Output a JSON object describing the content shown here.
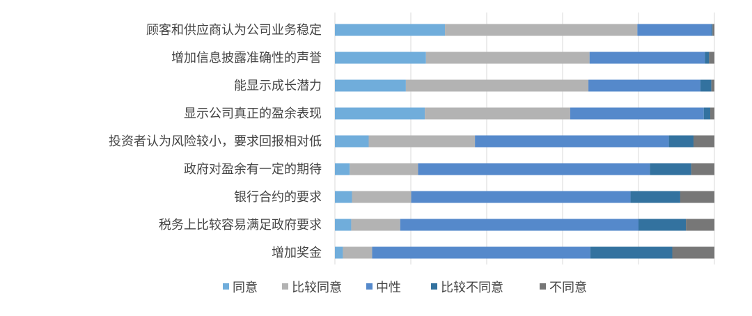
{
  "chart_data": {
    "type": "bar",
    "orientation": "horizontal",
    "stacked": "percent",
    "categories": [
      "顾客和供应商认为公司业务稳定",
      "增加信息披露准确性的声誉",
      "能显示成长潜力",
      "显示公司真正的盈余表现",
      "投资者认为风险较小，要求回报相对低",
      "政府对盈余有一定的期待",
      "银行合约的要求",
      "税务上比较容易满足政府要求",
      "增加奖金"
    ],
    "series": [
      {
        "name": "同意",
        "color": "#70addb",
        "values": [
          29.0,
          24.0,
          18.7,
          23.7,
          8.9,
          3.9,
          4.5,
          4.3,
          2.1
        ]
      },
      {
        "name": "比较同意",
        "color": "#b3b3b3",
        "values": [
          50.7,
          43.1,
          48.1,
          38.3,
          28.0,
          18.0,
          15.6,
          12.9,
          7.7
        ]
      },
      {
        "name": "中性",
        "color": "#5589cb",
        "values": [
          19.5,
          30.4,
          29.5,
          35.2,
          51.1,
          61.1,
          57.8,
          62.8,
          57.5
        ]
      },
      {
        "name": "比较不同意",
        "color": "#33729f",
        "values": [
          0.3,
          1.1,
          2.9,
          1.7,
          6.5,
          10.9,
          13.1,
          12.5,
          21.6
        ]
      },
      {
        "name": "不同意",
        "color": "#777777",
        "values": [
          0.5,
          1.4,
          0.8,
          1.1,
          5.5,
          6.1,
          9.0,
          7.5,
          11.1
        ]
      }
    ],
    "xlim": [
      0,
      100
    ],
    "grid": true,
    "legend": "bottom"
  }
}
